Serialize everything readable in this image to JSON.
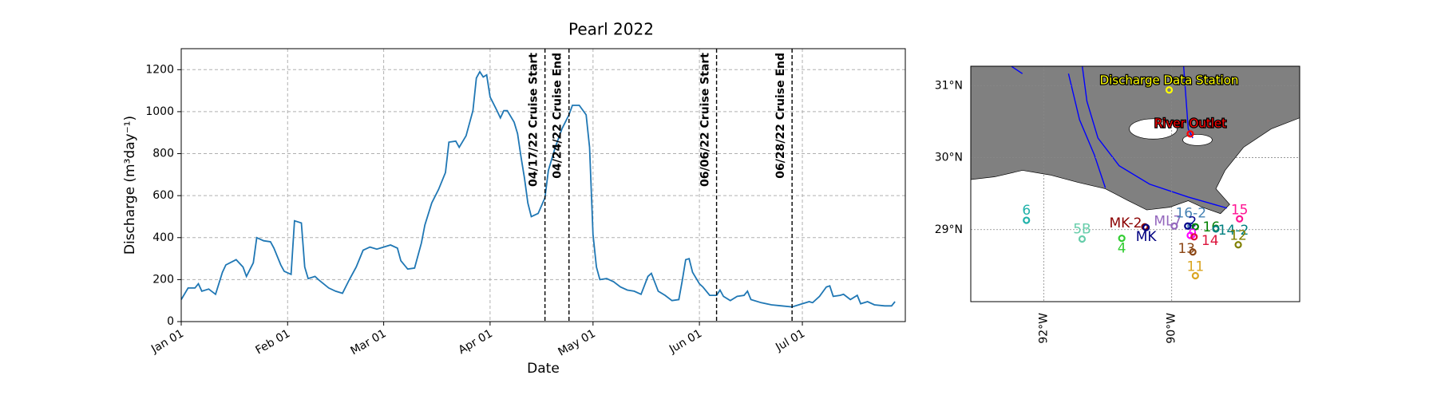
{
  "chart_data": [
    {
      "type": "line",
      "title": "Pearl 2022",
      "xlabel": "Date",
      "ylabel": "Discharge (m³day⁻¹)",
      "x": [
        "2022-01-01",
        "2022-01-03",
        "2022-01-05",
        "2022-01-06",
        "2022-01-07",
        "2022-01-09",
        "2022-01-11",
        "2022-01-13",
        "2022-01-14",
        "2022-01-17",
        "2022-01-19",
        "2022-01-20",
        "2022-01-22",
        "2022-01-23",
        "2022-01-25",
        "2022-01-27",
        "2022-01-28",
        "2022-01-30",
        "2022-01-31",
        "2022-02-02",
        "2022-02-03",
        "2022-02-05",
        "2022-02-06",
        "2022-02-07",
        "2022-02-09",
        "2022-02-10",
        "2022-02-13",
        "2022-02-15",
        "2022-02-17",
        "2022-02-19",
        "2022-02-21",
        "2022-02-23",
        "2022-02-25",
        "2022-02-27",
        "2022-03-01",
        "2022-03-03",
        "2022-03-05",
        "2022-03-06",
        "2022-03-08",
        "2022-03-10",
        "2022-03-12",
        "2022-03-13",
        "2022-03-15",
        "2022-03-17",
        "2022-03-19",
        "2022-03-20",
        "2022-03-22",
        "2022-03-23",
        "2022-03-25",
        "2022-03-27",
        "2022-03-28",
        "2022-03-29",
        "2022-03-30",
        "2022-03-31",
        "2022-04-01",
        "2022-04-03",
        "2022-04-04",
        "2022-04-05",
        "2022-04-06",
        "2022-04-08",
        "2022-04-09",
        "2022-04-10",
        "2022-04-11",
        "2022-04-12",
        "2022-04-13",
        "2022-04-15",
        "2022-04-17",
        "2022-04-18",
        "2022-04-20",
        "2022-04-22",
        "2022-04-24",
        "2022-04-25",
        "2022-04-27",
        "2022-04-29",
        "2022-04-30",
        "2022-05-01",
        "2022-05-02",
        "2022-05-03",
        "2022-05-05",
        "2022-05-07",
        "2022-05-09",
        "2022-05-11",
        "2022-05-13",
        "2022-05-15",
        "2022-05-17",
        "2022-05-18",
        "2022-05-20",
        "2022-05-22",
        "2022-05-24",
        "2022-05-26",
        "2022-05-27",
        "2022-05-28",
        "2022-05-29",
        "2022-05-30",
        "2022-06-01",
        "2022-06-02",
        "2022-06-04",
        "2022-06-06",
        "2022-06-07",
        "2022-06-08",
        "2022-06-10",
        "2022-06-12",
        "2022-06-14",
        "2022-06-15",
        "2022-06-16",
        "2022-06-19",
        "2022-06-22",
        "2022-06-25",
        "2022-06-28",
        "2022-07-01",
        "2022-07-03",
        "2022-07-04",
        "2022-07-06",
        "2022-07-08",
        "2022-07-09",
        "2022-07-10",
        "2022-07-12",
        "2022-07-13",
        "2022-07-15",
        "2022-07-17",
        "2022-07-18",
        "2022-07-20",
        "2022-07-22",
        "2022-07-25",
        "2022-07-27",
        "2022-07-28"
      ],
      "series": [
        {
          "color": "#1f77b4",
          "values": [
            105,
            160,
            160,
            180,
            145,
            155,
            130,
            235,
            270,
            295,
            260,
            215,
            280,
            400,
            385,
            380,
            350,
            270,
            240,
            225,
            480,
            470,
            260,
            205,
            215,
            200,
            160,
            145,
            135,
            200,
            260,
            340,
            355,
            345,
            355,
            365,
            350,
            290,
            250,
            255,
            375,
            460,
            565,
            630,
            710,
            855,
            860,
            830,
            885,
            1005,
            1160,
            1190,
            1165,
            1175,
            1070,
            1005,
            970,
            1005,
            1005,
            950,
            895,
            785,
            685,
            565,
            500,
            515,
            590,
            720,
            830,
            920,
            985,
            1030,
            1030,
            985,
            830,
            415,
            260,
            200,
            205,
            190,
            165,
            150,
            145,
            130,
            215,
            230,
            145,
            125,
            100,
            105,
            195,
            295,
            300,
            235,
            180,
            165,
            125,
            125,
            150,
            120,
            100,
            120,
            125,
            145,
            105,
            90,
            80,
            75,
            70,
            85,
            95,
            90,
            120,
            165,
            170,
            120,
            125,
            130,
            105,
            125,
            85,
            95,
            80,
            75,
            75,
            95
          ]
        }
      ],
      "xlim": [
        "2022-01-01",
        "2022-07-31"
      ],
      "xticks": [
        {
          "value": "2022-01-01",
          "label": "Jan 01"
        },
        {
          "value": "2022-02-01",
          "label": "Feb 01"
        },
        {
          "value": "2022-03-01",
          "label": "Mar 01"
        },
        {
          "value": "2022-04-01",
          "label": "Apr 01"
        },
        {
          "value": "2022-05-01",
          "label": "May 01"
        },
        {
          "value": "2022-06-01",
          "label": "Jun 01"
        },
        {
          "value": "2022-07-01",
          "label": "Jul 01"
        }
      ],
      "ylim": [
        0,
        1300
      ],
      "yticks": [
        0,
        200,
        400,
        600,
        800,
        1000,
        1200
      ],
      "grid": true,
      "vlines": [
        {
          "x": "2022-04-17",
          "label": "04/17/22 Cruise Start"
        },
        {
          "x": "2022-04-24",
          "label": "04/24/22 Cruise End"
        },
        {
          "x": "2022-06-06",
          "label": "06/06/22 Cruise Start"
        },
        {
          "x": "2022-06-28",
          "label": "06/28/22 Cruise End"
        }
      ]
    },
    {
      "type": "map",
      "xlim": [
        -93.14,
        -88.0
      ],
      "ylim": [
        28.0,
        31.27
      ],
      "xticks": [
        {
          "value": -92,
          "label": "92°W"
        },
        {
          "value": -90,
          "label": "90°W"
        }
      ],
      "yticks": [
        {
          "value": 29,
          "label": "29°N"
        },
        {
          "value": 30,
          "label": "30°N"
        },
        {
          "value": 31,
          "label": "31°N"
        }
      ],
      "stations": [
        {
          "name": "Discharge Data Station",
          "lon": -90.04,
          "lat": 30.94,
          "color": "#ffff00"
        },
        {
          "name": "River Outlet",
          "lon": -89.71,
          "lat": 30.33,
          "color": "#ff0000"
        },
        {
          "name": "6",
          "lon": -92.27,
          "lat": 29.13,
          "color": "#20b2aa"
        },
        {
          "name": "5B",
          "lon": -91.4,
          "lat": 28.87,
          "color": "#66cdaa"
        },
        {
          "name": "4",
          "lon": -90.78,
          "lat": 28.88,
          "color": "#32cd32"
        },
        {
          "name": "MK-2",
          "lon": -90.42,
          "lat": 29.04,
          "color": "#8b0000"
        },
        {
          "name": "MK",
          "lon": -90.4,
          "lat": 29.03,
          "color": "#000080"
        },
        {
          "name": "ML7",
          "lon": -89.96,
          "lat": 29.05,
          "color": "#9467bd"
        },
        {
          "name": "16-2",
          "lon": -89.7,
          "lat": 29.05,
          "color": "#4682b4"
        },
        {
          "name": "2",
          "lon": -89.75,
          "lat": 29.05,
          "color": "#00008b"
        },
        {
          "name": "16",
          "lon": -89.63,
          "lat": 29.04,
          "color": "#008000"
        },
        {
          "name": "14-2",
          "lon": -89.31,
          "lat": 29.01,
          "color": "#008080"
        },
        {
          "name": "15",
          "lon": -88.94,
          "lat": 29.15,
          "color": "#ff1493"
        },
        {
          "name": "12",
          "lon": -88.96,
          "lat": 28.79,
          "color": "#808000"
        },
        {
          "name": "9",
          "lon": -89.71,
          "lat": 28.92,
          "color": "#ff00ff"
        },
        {
          "name": "14",
          "lon": -89.65,
          "lat": 28.9,
          "color": "#dc143c"
        },
        {
          "name": "13",
          "lon": -89.67,
          "lat": 28.69,
          "color": "#8b4513"
        },
        {
          "name": "11",
          "lon": -89.63,
          "lat": 28.36,
          "color": "#daa520"
        }
      ]
    }
  ]
}
